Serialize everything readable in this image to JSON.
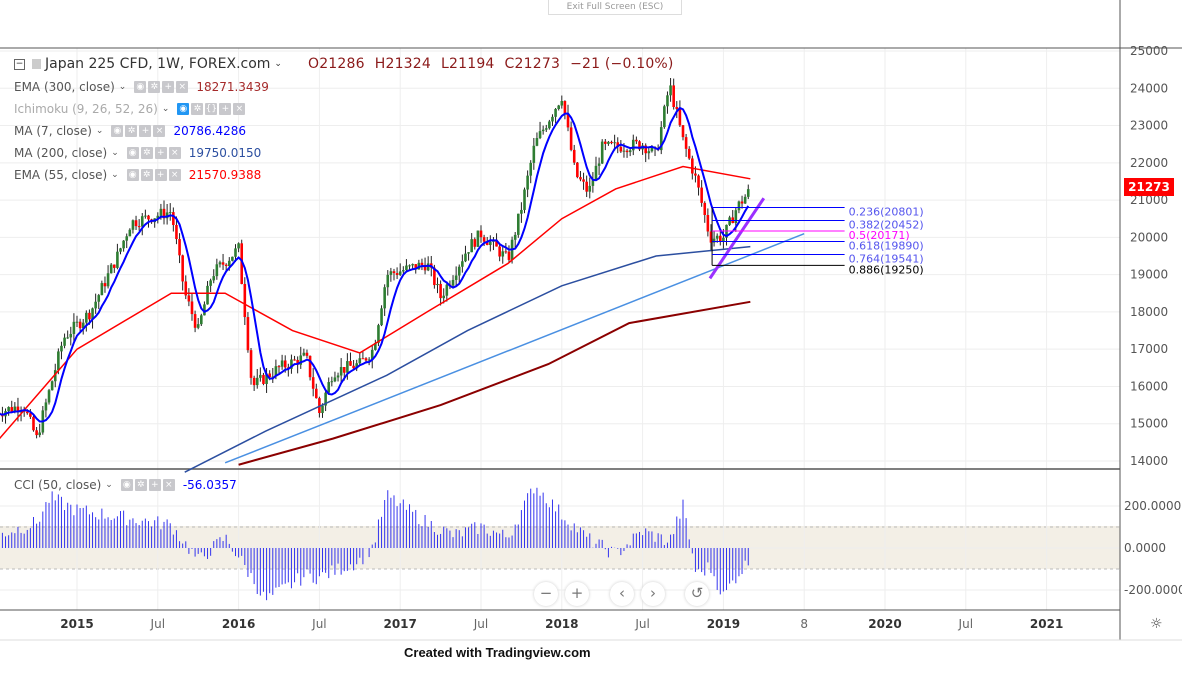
{
  "header": {
    "exit_fullscreen": "Exit Full Screen (ESC)",
    "symbol": "Japan 225 CFD, 1W, FOREX.com",
    "open": "O21286",
    "high": "H21324",
    "low": "L21194",
    "close": "C21273",
    "change": "−21 (−0.10%)"
  },
  "indicators": [
    {
      "label": "EMA (300, close)",
      "value": "18271.3439",
      "color": "#a52a2a"
    },
    {
      "label": "Ichimoku (9, 26, 52, 26)",
      "value": "",
      "color": "#999999"
    },
    {
      "label": "MA (7, close)",
      "value": "20786.4286",
      "color": "#0000ff"
    },
    {
      "label": "MA (200, close)",
      "value": "19750.0150",
      "color": "#2c4fa0"
    },
    {
      "label": "EMA (55, close)",
      "value": "21570.9388",
      "color": "#ff0000"
    }
  ],
  "cci": {
    "label": "CCI (50, close)",
    "value": "-56.0357",
    "color": "#0000ff",
    "axis": [
      "200.0000",
      "0.0000",
      "-200.0000"
    ]
  },
  "price_axis": [
    "25000",
    "24000",
    "23000",
    "22000",
    "21000",
    "20000",
    "19000",
    "18000",
    "17000",
    "16000",
    "15000",
    "14000"
  ],
  "last_price": "21273",
  "time_axis": [
    {
      "t": "2015",
      "bold": true
    },
    {
      "t": "Jul"
    },
    {
      "t": "2016",
      "bold": true
    },
    {
      "t": "Jul"
    },
    {
      "t": "2017",
      "bold": true
    },
    {
      "t": "Jul"
    },
    {
      "t": "2018",
      "bold": true
    },
    {
      "t": "Jul"
    },
    {
      "t": "2019",
      "bold": true
    },
    {
      "t": "8"
    },
    {
      "t": "2020",
      "bold": true
    },
    {
      "t": "Jul"
    },
    {
      "t": "2021",
      "bold": true
    }
  ],
  "fib_levels": [
    {
      "label": "0.236(20801)",
      "price": 20801,
      "color": "#0000ff"
    },
    {
      "label": "0.382(20452)",
      "price": 20452,
      "color": "#0000ff"
    },
    {
      "label": "0.5(20171)",
      "price": 20171,
      "color": "#ff00ff"
    },
    {
      "label": "0.618(19890)",
      "price": 19890,
      "color": "#0000ff"
    },
    {
      "label": "0.764(19541)",
      "price": 19541,
      "color": "#0000ff"
    },
    {
      "label": "0.886(19250)",
      "price": 19250,
      "color": "#000000"
    }
  ],
  "nav_buttons": [
    "−",
    "+",
    "‹",
    "›",
    "↺"
  ],
  "credit": "Created with Tradingview.com",
  "colors": {
    "up": "#2e7d32",
    "down": "#ff0000",
    "ma7": "#0000ff",
    "ema55": "#ff0000",
    "ma200": "#2c4fa0",
    "ema300": "#8b0000",
    "trend": "#4a90e2",
    "wedge": "#9b30ff",
    "cci_band": "#f3efe6"
  },
  "chart_data": {
    "type": "candlestick",
    "price_keypoints": [
      [
        "2014-07",
        15300
      ],
      [
        "2014-09",
        15500
      ],
      [
        "2014-10",
        14600
      ],
      [
        "2014-12",
        17300
      ],
      [
        "2015-02",
        18000
      ],
      [
        "2015-04",
        19500
      ],
      [
        "2015-05",
        20400
      ],
      [
        "2015-07",
        20600
      ],
      [
        "2015-08",
        20700
      ],
      [
        "2015-09",
        18500
      ],
      [
        "2015-10",
        17500
      ],
      [
        "2015-11",
        19000
      ],
      [
        "2016-01",
        19700
      ],
      [
        "2016-02",
        16000
      ],
      [
        "2016-04",
        16500
      ],
      [
        "2016-06",
        16800
      ],
      [
        "2016-07",
        15300
      ],
      [
        "2016-08",
        16400
      ],
      [
        "2016-10",
        16600
      ],
      [
        "2016-11",
        17000
      ],
      [
        "2016-12",
        19000
      ],
      [
        "2017-03",
        19300
      ],
      [
        "2017-04",
        18400
      ],
      [
        "2017-06",
        19700
      ],
      [
        "2017-07",
        20100
      ],
      [
        "2017-09",
        19400
      ],
      [
        "2017-10",
        20800
      ],
      [
        "2017-11",
        22500
      ],
      [
        "2018-01",
        23800
      ],
      [
        "2018-02",
        21700
      ],
      [
        "2018-03",
        21200
      ],
      [
        "2018-04",
        22400
      ],
      [
        "2018-07",
        22500
      ],
      [
        "2018-08",
        22200
      ],
      [
        "2018-09",
        24100
      ],
      [
        "2018-10",
        22600
      ],
      [
        "2018-11",
        21500
      ],
      [
        "2018-12",
        20000
      ],
      [
        "2019-01",
        20000
      ],
      [
        "2019-02",
        20800
      ],
      [
        "2019-03",
        21273
      ]
    ],
    "ema55": [
      [
        "2014-07",
        14500
      ],
      [
        "2015-01",
        17000
      ],
      [
        "2015-08",
        18500
      ],
      [
        "2015-12",
        18500
      ],
      [
        "2016-05",
        17500
      ],
      [
        "2016-10",
        16900
      ],
      [
        "2017-03",
        18000
      ],
      [
        "2017-09",
        19300
      ],
      [
        "2018-01",
        20500
      ],
      [
        "2018-05",
        21300
      ],
      [
        "2018-10",
        21900
      ],
      [
        "2019-03",
        21571
      ]
    ],
    "ma200": [
      [
        "2015-09",
        13700
      ],
      [
        "2016-03",
        14800
      ],
      [
        "2016-12",
        16300
      ],
      [
        "2017-06",
        17500
      ],
      [
        "2018-01",
        18700
      ],
      [
        "2018-08",
        19500
      ],
      [
        "2019-03",
        19750
      ]
    ],
    "ema300": [
      [
        "2016-01",
        13900
      ],
      [
        "2016-08",
        14600
      ],
      [
        "2017-04",
        15500
      ],
      [
        "2017-12",
        16600
      ],
      [
        "2018-06",
        17700
      ],
      [
        "2019-03",
        18271
      ]
    ],
    "trendline": [
      [
        "2015-12",
        13950
      ],
      [
        "2019-07",
        20100
      ]
    ],
    "wedge": [
      [
        "2018-12",
        18900
      ],
      [
        "2019-04",
        21050
      ]
    ],
    "cci_keypoints": [
      [
        "2014-07",
        60
      ],
      [
        "2014-10",
        120
      ],
      [
        "2014-11",
        240
      ],
      [
        "2015-01",
        180
      ],
      [
        "2015-04",
        150
      ],
      [
        "2015-08",
        110
      ],
      [
        "2015-10",
        -60
      ],
      [
        "2015-12",
        50
      ],
      [
        "2016-01",
        -40
      ],
      [
        "2016-03",
        -250
      ],
      [
        "2016-06",
        -130
      ],
      [
        "2016-07",
        -140
      ],
      [
        "2016-10",
        -60
      ],
      [
        "2016-11",
        10
      ],
      [
        "2016-12",
        250
      ],
      [
        "2017-03",
        120
      ],
      [
        "2017-05",
        60
      ],
      [
        "2017-07",
        100
      ],
      [
        "2017-09",
        50
      ],
      [
        "2017-11",
        300
      ],
      [
        "2018-01",
        160
      ],
      [
        "2018-03",
        40
      ],
      [
        "2018-05",
        -30
      ],
      [
        "2018-07",
        80
      ],
      [
        "2018-09",
        30
      ],
      [
        "2018-10",
        200
      ],
      [
        "2018-11",
        -130
      ],
      [
        "2018-12",
        -90
      ],
      [
        "2019-01",
        -230
      ],
      [
        "2019-02",
        -130
      ],
      [
        "2019-03",
        -56
      ]
    ],
    "ylim": [
      14000,
      25000
    ],
    "cci_ylim": [
      -280,
      330
    ]
  }
}
